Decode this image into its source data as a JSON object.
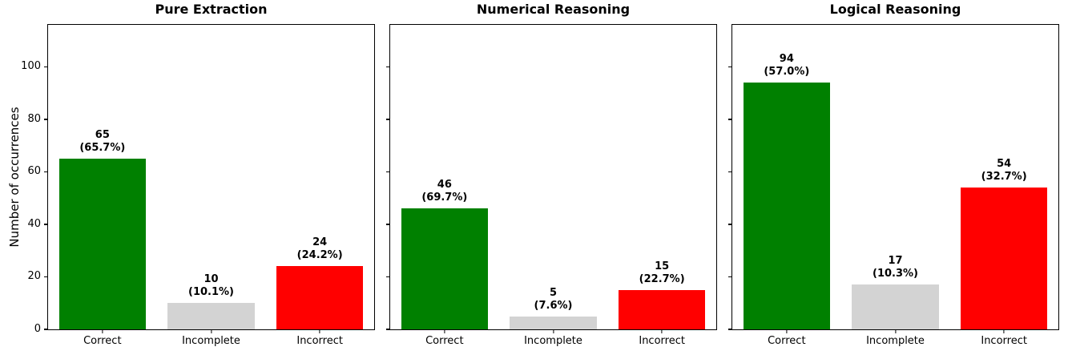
{
  "figure": {
    "background": "#ffffff",
    "text_color": "#000000"
  },
  "chart_data": [
    {
      "type": "bar",
      "title": "Pure Extraction",
      "categories": [
        "Correct",
        "Incomplete",
        "Incorrect"
      ],
      "values": [
        65,
        10,
        24
      ],
      "percent_labels": [
        "(65.7%)",
        "(10.1%)",
        "(24.2%)"
      ],
      "bar_colors": [
        "#008000",
        "#d3d3d3",
        "#ff0000"
      ],
      "ylabel": "Number of occurrences",
      "yticks": [
        0,
        20,
        40,
        60,
        80,
        100
      ],
      "ylim": [
        0,
        116
      ],
      "grid": false,
      "legend": false,
      "show_ytick_labels": true
    },
    {
      "type": "bar",
      "title": "Numerical Reasoning",
      "categories": [
        "Correct",
        "Incomplete",
        "Incorrect"
      ],
      "values": [
        46,
        5,
        15
      ],
      "percent_labels": [
        "(69.7%)",
        "(7.6%)",
        "(22.7%)"
      ],
      "bar_colors": [
        "#008000",
        "#d3d3d3",
        "#ff0000"
      ],
      "ylabel": "",
      "yticks": [
        0,
        20,
        40,
        60,
        80,
        100
      ],
      "ylim": [
        0,
        116
      ],
      "grid": false,
      "legend": false,
      "show_ytick_labels": false
    },
    {
      "type": "bar",
      "title": "Logical Reasoning",
      "categories": [
        "Correct",
        "Incomplete",
        "Incorrect"
      ],
      "values": [
        94,
        17,
        54
      ],
      "percent_labels": [
        "(57.0%)",
        "(10.3%)",
        "(32.7%)"
      ],
      "bar_colors": [
        "#008000",
        "#d3d3d3",
        "#ff0000"
      ],
      "ylabel": "",
      "yticks": [
        0,
        20,
        40,
        60,
        80,
        100
      ],
      "ylim": [
        0,
        116
      ],
      "grid": false,
      "legend": false,
      "show_ytick_labels": false
    }
  ]
}
